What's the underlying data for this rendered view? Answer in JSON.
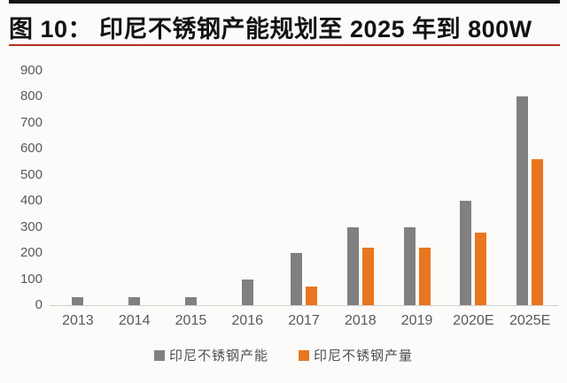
{
  "header": {
    "title": "图 10：  印尼不锈钢产能规划至 2025 年到 800W"
  },
  "colors": {
    "capacity_gray": "#808080",
    "production_orange": "#e8761f",
    "title_black": "#121212",
    "rule_red": "#b23323",
    "rule_black": "#141414",
    "axis_text": "#595959",
    "axis_line": "#d2cfcc",
    "background": "#fcfbf9"
  },
  "chart_data": {
    "type": "bar",
    "title": "印尼不锈钢产能规划至 2025 年到 800W",
    "categories": [
      "2013",
      "2014",
      "2015",
      "2016",
      "2017",
      "2018",
      "2019",
      "2020E",
      "2025E"
    ],
    "series": [
      {
        "name": "印尼不锈钢产能",
        "color": "#808080",
        "values": [
          30,
          30,
          30,
          100,
          200,
          300,
          300,
          400,
          800
        ]
      },
      {
        "name": "印尼不锈钢产量",
        "color": "#e8761f",
        "values": [
          null,
          null,
          null,
          null,
          70,
          220,
          220,
          280,
          560
        ]
      }
    ],
    "xlabel": "",
    "ylabel": "",
    "ylim": [
      0,
      900
    ],
    "y_ticks": [
      900,
      800,
      700,
      600,
      500,
      400,
      300,
      200,
      100,
      0
    ],
    "grid": false,
    "legend_position": "bottom"
  }
}
